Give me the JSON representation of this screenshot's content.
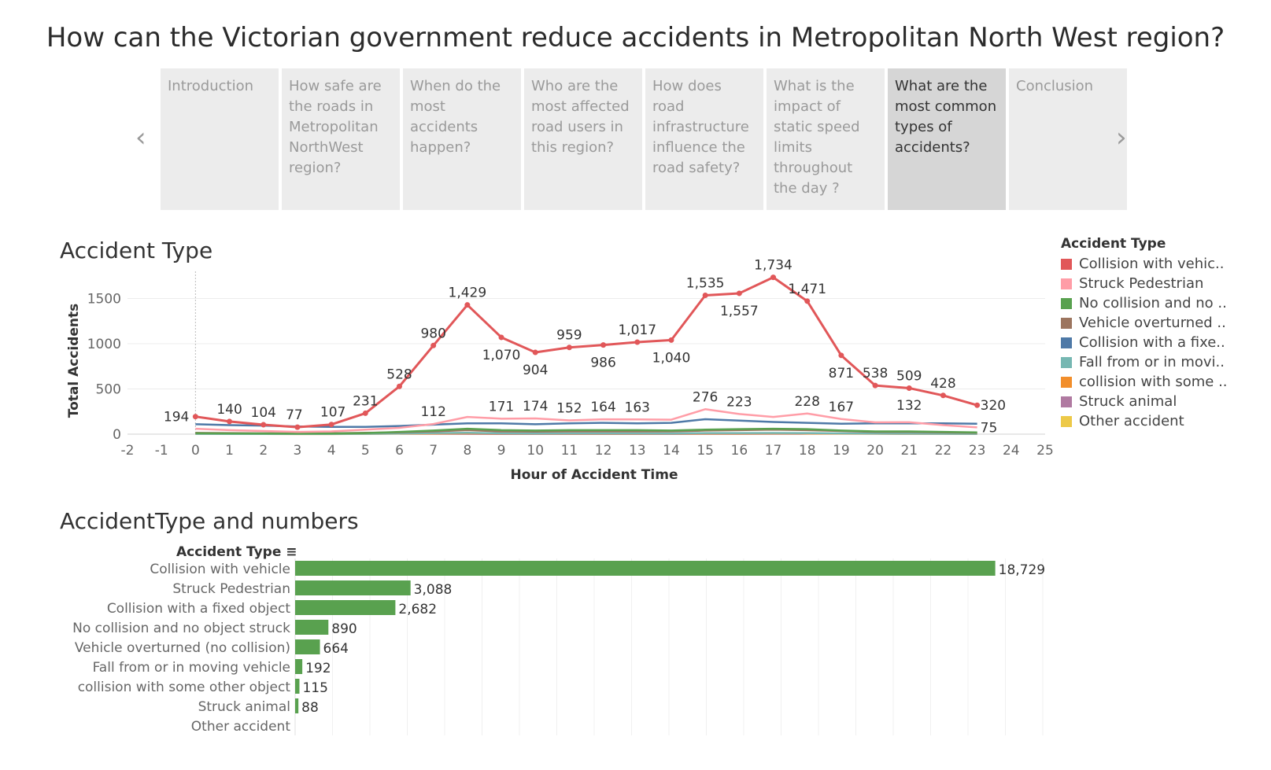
{
  "page_title": "How can the Victorian government reduce accidents in Metropolitan North West region?",
  "story_points": [
    {
      "label": "Introduction",
      "active": false
    },
    {
      "label": "How safe are the roads in Metropolitan NorthWest region?",
      "active": false
    },
    {
      "label": "When do the most accidents happen?",
      "active": false
    },
    {
      "label": "Who are the most affected road users in this region?",
      "active": false
    },
    {
      "label": "How does road infrastructure influence the road safety?",
      "active": false
    },
    {
      "label": "What is the impact of static speed limits throughout the day ?",
      "active": false
    },
    {
      "label": "What are the most common types of accidents?",
      "active": true
    },
    {
      "label": "Conclusion",
      "active": false
    }
  ],
  "nav": {
    "prev_icon": "‹",
    "next_icon": "›"
  },
  "line_title": "Accident Type",
  "bar_title": "AccidentType and numbers",
  "legend": {
    "title": "Accident Type",
    "items": [
      {
        "label": "Collision with vehic..",
        "color": "#e15759"
      },
      {
        "label": "Struck Pedestrian",
        "color": "#ff9da7"
      },
      {
        "label": "No collision and no ..",
        "color": "#59a14f"
      },
      {
        "label": "Vehicle overturned ..",
        "color": "#9c755f"
      },
      {
        "label": "Collision with a fixe..",
        "color": "#4e79a7"
      },
      {
        "label": "Fall from or in movi..",
        "color": "#76b7b2"
      },
      {
        "label": "collision with some ..",
        "color": "#f28e2b"
      },
      {
        "label": "Struck animal",
        "color": "#b07aa1"
      },
      {
        "label": "Other accident",
        "color": "#edc948"
      }
    ]
  },
  "chart_data": [
    {
      "type": "line",
      "title": "Accident Type",
      "xlabel": "Hour of Accident Time",
      "ylabel": "Total Accidents",
      "xlim": [
        -2,
        25
      ],
      "ylim": [
        0,
        1800
      ],
      "x_ticks": [
        "-2",
        "-1",
        "0",
        "1",
        "2",
        "3",
        "4",
        "5",
        "6",
        "7",
        "8",
        "9",
        "10",
        "11",
        "12",
        "13",
        "14",
        "15",
        "16",
        "17",
        "18",
        "19",
        "20",
        "21",
        "22",
        "23",
        "24",
        "25"
      ],
      "y_ticks": [
        "0",
        "500",
        "1000",
        "1500"
      ],
      "x": [
        0,
        1,
        2,
        3,
        4,
        5,
        6,
        7,
        8,
        9,
        10,
        11,
        12,
        13,
        14,
        15,
        16,
        17,
        18,
        19,
        20,
        21,
        22,
        23
      ],
      "series": [
        {
          "name": "Collision with vehicle",
          "color": "#e15759",
          "labeled": true,
          "values": [
            194,
            140,
            104,
            77,
            107,
            231,
            528,
            980,
            1429,
            1070,
            904,
            959,
            986,
            1017,
            1040,
            1535,
            1557,
            1734,
            1471,
            871,
            538,
            509,
            428,
            320
          ],
          "labels": [
            "194",
            "140",
            "104",
            "77",
            "107",
            "231",
            "528",
            "980",
            "1,429",
            "1,070",
            "904",
            "959",
            "986",
            "1,017",
            "1,040",
            "1,535",
            "1,557",
            "1,734",
            "1,471",
            "871",
            "538",
            "509",
            "428",
            "320"
          ]
        },
        {
          "name": "Struck Pedestrian",
          "color": "#ff9da7",
          "labeled": true,
          "values": [
            60,
            45,
            35,
            25,
            30,
            50,
            70,
            112,
            190,
            171,
            174,
            152,
            164,
            163,
            160,
            276,
            223,
            190,
            228,
            167,
            130,
            132,
            100,
            75
          ],
          "labels": [
            "",
            "",
            "",
            "",
            "",
            "",
            "",
            "112",
            "",
            "171",
            "174",
            "152",
            "164",
            "163",
            "",
            "276",
            "223",
            "",
            "228",
            "167",
            "",
            "132",
            "",
            "75"
          ]
        },
        {
          "name": "No collision and no object struck",
          "color": "#59a14f",
          "labeled": false,
          "values": [
            10,
            8,
            6,
            5,
            6,
            12,
            25,
            40,
            60,
            45,
            40,
            45,
            45,
            45,
            40,
            50,
            55,
            60,
            55,
            40,
            30,
            30,
            25,
            20
          ]
        },
        {
          "name": "Vehicle overturned (no collision)",
          "color": "#9c755f",
          "labeled": false,
          "values": [
            15,
            12,
            10,
            9,
            10,
            15,
            20,
            30,
            45,
            30,
            28,
            30,
            30,
            30,
            30,
            40,
            45,
            50,
            45,
            35,
            25,
            25,
            20,
            15
          ]
        },
        {
          "name": "Collision with a fixed object",
          "color": "#4e79a7",
          "labeled": false,
          "values": [
            110,
            100,
            95,
            85,
            80,
            80,
            90,
            105,
            120,
            120,
            110,
            120,
            125,
            120,
            125,
            165,
            150,
            135,
            125,
            115,
            120,
            120,
            120,
            115
          ]
        },
        {
          "name": "Fall from or in moving vehicle",
          "color": "#76b7b2",
          "labeled": false,
          "values": [
            3,
            2,
            2,
            2,
            2,
            4,
            8,
            12,
            15,
            10,
            8,
            9,
            9,
            9,
            8,
            12,
            12,
            13,
            12,
            9,
            7,
            5,
            4,
            3
          ]
        },
        {
          "name": "collision with some other object",
          "color": "#f28e2b",
          "labeled": false,
          "values": [
            3,
            2,
            2,
            1,
            1,
            3,
            5,
            7,
            9,
            6,
            5,
            5,
            5,
            5,
            5,
            7,
            7,
            8,
            7,
            5,
            4,
            3,
            3,
            2
          ]
        },
        {
          "name": "Struck animal",
          "color": "#b07aa1",
          "labeled": false,
          "values": [
            5,
            4,
            3,
            3,
            4,
            5,
            6,
            4,
            3,
            2,
            2,
            2,
            2,
            2,
            2,
            3,
            3,
            4,
            5,
            6,
            6,
            5,
            5,
            5
          ]
        }
      ]
    },
    {
      "type": "bar",
      "orientation": "horizontal",
      "title": "AccidentType and numbers",
      "category_header": "Accident Type",
      "sort_icon": "sort-descending-icon",
      "color": "#59a14f",
      "xlim": [
        0,
        20000
      ],
      "categories": [
        "Collision with vehicle",
        "Struck Pedestrian",
        "Collision with a fixed object",
        "No collision and no object struck",
        "Vehicle overturned (no collision)",
        "Fall from or in moving vehicle",
        "collision with some other object",
        "Struck animal",
        "Other accident"
      ],
      "values": [
        18729,
        3088,
        2682,
        890,
        664,
        192,
        115,
        88,
        0
      ],
      "labels": [
        "18,729",
        "3,088",
        "2,682",
        "890",
        "664",
        "192",
        "115",
        "88",
        ""
      ]
    }
  ]
}
